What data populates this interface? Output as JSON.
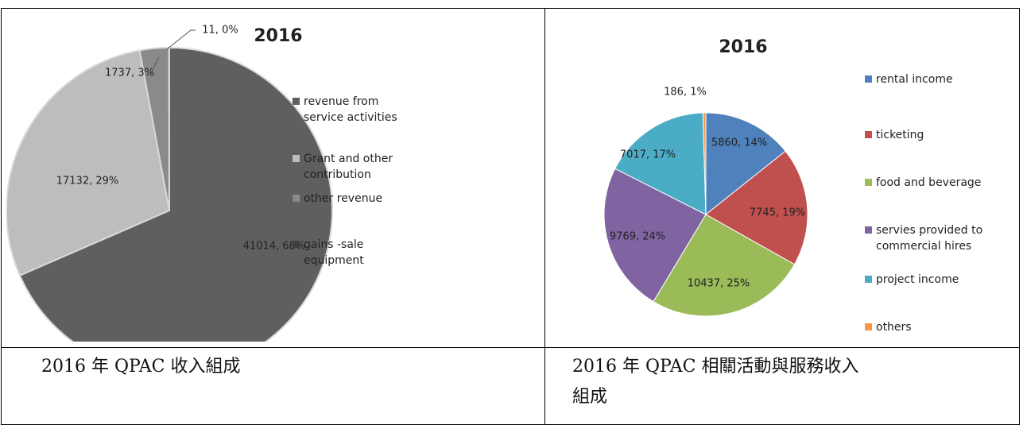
{
  "chart_data": [
    {
      "type": "pie",
      "title": "2016",
      "categories": [
        "revenue from service activities",
        "Grant and other contribution",
        "other revenue",
        "gains -sale equipment"
      ],
      "values": [
        41014,
        17132,
        1737,
        11
      ],
      "value_labels": [
        "41014, 68%",
        "17132, 29%",
        "1737, 3%",
        "11, 0%"
      ],
      "colors": [
        "#5f5f5f",
        "#bdbdbd",
        "#8a8a8a",
        "#3f3f3f"
      ]
    },
    {
      "type": "pie",
      "title": "2016",
      "categories": [
        "rental income",
        "ticketing",
        "food and beverage",
        "servies provided to commercial hires",
        "project income",
        "others"
      ],
      "values": [
        5860,
        7745,
        10437,
        9769,
        7017,
        186
      ],
      "value_labels": [
        "5860, 14%",
        "7745, 19%",
        "10437, 25%",
        "9769, 24%",
        "7017, 17%",
        "186, 1%"
      ],
      "colors": [
        "#4f81bd",
        "#c0504d",
        "#9bbb59",
        "#8064a2",
        "#4bacc6",
        "#f79646"
      ]
    }
  ],
  "captions": [
    "2016 年 QPAC 收入組成",
    "2016 年 QPAC 相關活動與服務收入組成"
  ]
}
